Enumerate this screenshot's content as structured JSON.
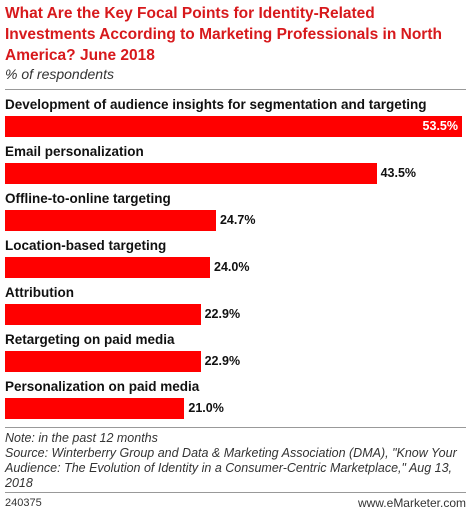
{
  "chart_data": {
    "type": "bar",
    "title": "What Are the Key Focal Points for Identity-Related Investments According to Marketing Professionals in North America? June 2018",
    "subtitle": "% of respondents",
    "categories": [
      "Development of audience insights for segmentation and targeting",
      "Email personalization",
      "Offline-to-online targeting",
      "Location-based targeting",
      "Attribution",
      "Retargeting on paid media",
      "Personalization on paid media"
    ],
    "values": [
      53.5,
      43.5,
      24.7,
      24.0,
      22.9,
      22.9,
      21.0
    ],
    "value_labels": [
      "53.5%",
      "43.5%",
      "24.7%",
      "24.0%",
      "22.9%",
      "22.9%",
      "21.0%"
    ],
    "color": "#ff0000",
    "note": "Note: in the past 12 months",
    "source": "Source: Winterberry Group and Data & Marketing Association (DMA), \"Know Your Audience: The Evolution of Identity in a Consumer-Centric Marketplace,\" Aug 13, 2018",
    "id": "240375",
    "brand": "www.eMarketer.com"
  }
}
